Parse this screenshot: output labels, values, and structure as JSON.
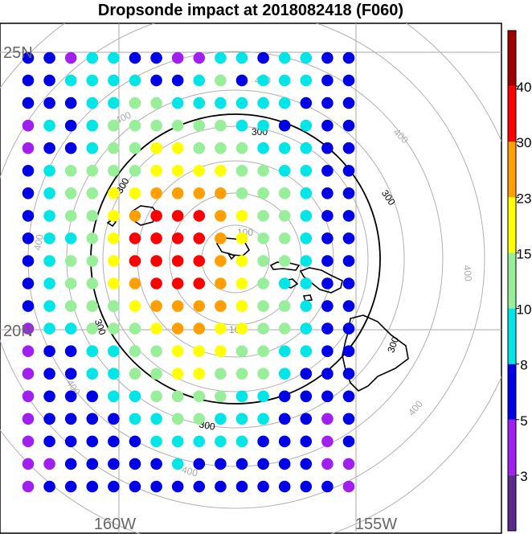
{
  "chart_data": {
    "type": "scatter",
    "title": "Dropsonde impact at 2018082418 (F060)",
    "lat_labels": [
      "25N",
      "20N"
    ],
    "lon_labels": [
      "160W",
      "155W"
    ],
    "ring_labels": [
      "100",
      "300",
      "400"
    ],
    "colorbar": {
      "tick_labels": [
        "3",
        "5",
        "8",
        "10",
        "15",
        "23",
        "30",
        "40"
      ],
      "colors": [
        "#5a2a8c",
        "#a020f0",
        "#0000e6",
        "#00e6e6",
        "#99ee99",
        "#ffff00",
        "#ffa000",
        "#ff0000",
        "#a00000"
      ]
    },
    "legend_placement": "right",
    "grid": true,
    "impact_grid": [
      "2213322113323322",
      "2233332234233322",
      "2223344333333222",
      "1323444444332322",
      "1223445544433322",
      "2344445555443322",
      "2344556666444322",
      "2344567776544322",
      "2334577776544322",
      "2344577776544322",
      "2344567776543322",
      "2344456666544322",
      "1334445665544322",
      "1223344555443322",
      "1223344554443222",
      "1222334444332222",
      "1222233443332212",
      "1222223333322212",
      "1122222322222211",
      "1222222222222221"
    ]
  }
}
